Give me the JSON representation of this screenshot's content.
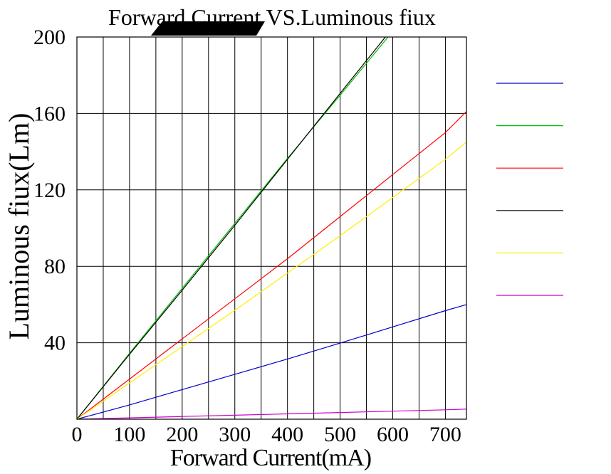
{
  "chart_data": {
    "type": "line",
    "title": "Forward Current VS.Luminous fiux",
    "xlabel": "Forward Current(mA)",
    "ylabel": "Luminous fiux(Lm)",
    "xlim": [
      0,
      740
    ],
    "ylim": [
      0,
      200
    ],
    "x_ticks": [
      0,
      100,
      200,
      300,
      400,
      500,
      600,
      700
    ],
    "y_ticks": [
      40,
      80,
      120,
      160,
      200
    ],
    "grid": true,
    "legend_position": "right",
    "series": [
      {
        "color": "#0000cc",
        "x": [
          0,
          100,
          200,
          300,
          400,
          500,
          600,
          700,
          740
        ],
        "y": [
          0,
          7.5,
          15.5,
          23.5,
          31.5,
          39.8,
          48.3,
          56.8,
          60
        ]
      },
      {
        "color": "#00bb00",
        "x": [
          0,
          100,
          200,
          300,
          400,
          500,
          591
        ],
        "y": [
          0,
          34.5,
          68.5,
          102.5,
          136.5,
          169.5,
          200
        ]
      },
      {
        "color": "#ff0000",
        "x": [
          0,
          100,
          200,
          300,
          400,
          500,
          600,
          700,
          740
        ],
        "y": [
          0,
          21,
          42,
          63,
          84,
          106,
          128,
          150,
          161
        ]
      },
      {
        "color": "#000000",
        "x": [
          0,
          100,
          200,
          300,
          400,
          500,
          586
        ],
        "y": [
          0,
          34,
          67.5,
          101.5,
          136,
          170.5,
          200
        ]
      },
      {
        "color": "#ffee00",
        "x": [
          0,
          100,
          200,
          300,
          400,
          500,
          600,
          700,
          740
        ],
        "y": [
          0,
          19,
          38,
          57,
          76.5,
          96,
          116,
          136,
          145
        ]
      },
      {
        "color": "#cc00cc",
        "x": [
          0,
          100,
          200,
          300,
          400,
          500,
          600,
          700,
          740
        ],
        "y": [
          0,
          0.7,
          1.4,
          2.1,
          2.8,
          3.5,
          4.2,
          4.9,
          5.3
        ]
      }
    ]
  }
}
